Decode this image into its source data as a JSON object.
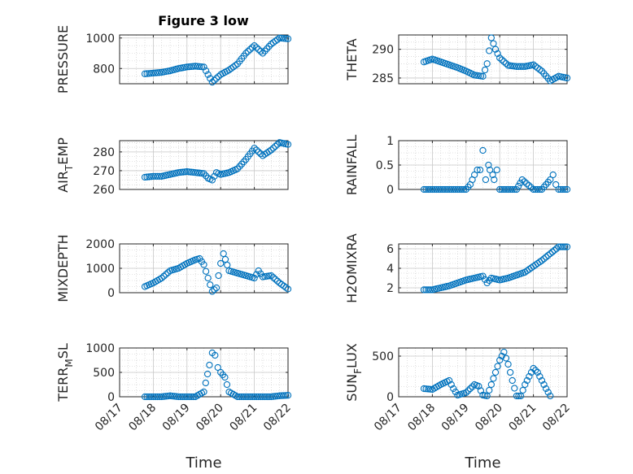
{
  "figure": {
    "title": "Figure 3 low"
  },
  "colors": {
    "marker": "#0072BD",
    "grid": "#c8c8c8",
    "axis": "#262626"
  },
  "chart_data": [
    {
      "type": "scatter",
      "title": "Figure 3 low",
      "xlabel": "",
      "ylabel": "PRESSURE",
      "ylim": [
        700,
        1020
      ],
      "yticks": [
        800,
        1000
      ],
      "xlim": [
        "08/17",
        "08/22"
      ],
      "grid": true,
      "series": [
        {
          "values": [
            [
              "08/17 18:00",
              765
            ],
            [
              "08/18 00:00",
              770
            ],
            [
              "08/18 06:00",
              775
            ],
            [
              "08/18 12:00",
              785
            ],
            [
              "08/18 18:00",
              800
            ],
            [
              "08/19 00:00",
              810
            ],
            [
              "08/19 06:00",
              815
            ],
            [
              "08/19 12:00",
              810
            ],
            [
              "08/19 15:00",
              760
            ],
            [
              "08/19 18:00",
              710
            ],
            [
              "08/20 00:00",
              760
            ],
            [
              "08/20 06:00",
              790
            ],
            [
              "08/20 12:00",
              830
            ],
            [
              "08/20 18:00",
              900
            ],
            [
              "08/21 00:00",
              950
            ],
            [
              "08/21 06:00",
              900
            ],
            [
              "08/21 12:00",
              960
            ],
            [
              "08/21 18:00",
              1000
            ],
            [
              "08/22 00:00",
              995
            ]
          ]
        }
      ]
    },
    {
      "type": "scatter",
      "xlabel": "",
      "ylabel": "THETA",
      "ylim": [
        284,
        292.5
      ],
      "yticks": [
        285,
        290
      ],
      "xlim": [
        "08/17",
        "08/22"
      ],
      "grid": true,
      "series": [
        {
          "values": [
            [
              "08/17 18:00",
              287.8
            ],
            [
              "08/18 00:00",
              288.3
            ],
            [
              "08/18 06:00",
              287.8
            ],
            [
              "08/18 12:00",
              287.3
            ],
            [
              "08/18 18:00",
              286.8
            ],
            [
              "08/19 00:00",
              286.2
            ],
            [
              "08/19 06:00",
              285.5
            ],
            [
              "08/19 12:00",
              285.3
            ],
            [
              "08/19 15:00",
              287.5
            ],
            [
              "08/19 18:00",
              292
            ],
            [
              "08/19 21:00",
              290
            ],
            [
              "08/20 00:00",
              288.5
            ],
            [
              "08/20 06:00",
              287.2
            ],
            [
              "08/20 12:00",
              287
            ],
            [
              "08/20 18:00",
              287
            ],
            [
              "08/21 00:00",
              287.3
            ],
            [
              "08/21 06:00",
              286.2
            ],
            [
              "08/21 12:00",
              284.5
            ],
            [
              "08/21 18:00",
              285.3
            ],
            [
              "08/22 00:00",
              285
            ]
          ]
        }
      ]
    },
    {
      "type": "scatter",
      "xlabel": "",
      "ylabel": "AIR_TEMP",
      "ylim": [
        260,
        286
      ],
      "yticks": [
        260,
        270,
        280
      ],
      "xlim": [
        "08/17",
        "08/22"
      ],
      "grid": true,
      "series": [
        {
          "values": [
            [
              "08/17 18:00",
              266.5
            ],
            [
              "08/18 00:00",
              267
            ],
            [
              "08/18 06:00",
              267
            ],
            [
              "08/18 12:00",
              268
            ],
            [
              "08/18 18:00",
              269
            ],
            [
              "08/19 00:00",
              269.5
            ],
            [
              "08/19 06:00",
              269
            ],
            [
              "08/19 12:00",
              268.5
            ],
            [
              "08/19 15:00",
              266
            ],
            [
              "08/19 18:00",
              265
            ],
            [
              "08/19 21:00",
              269
            ],
            [
              "08/20 00:00",
              268
            ],
            [
              "08/20 06:00",
              269
            ],
            [
              "08/20 12:00",
              271
            ],
            [
              "08/20 18:00",
              276
            ],
            [
              "08/21 00:00",
              282
            ],
            [
              "08/21 06:00",
              278
            ],
            [
              "08/21 12:00",
              281
            ],
            [
              "08/21 18:00",
              285
            ],
            [
              "08/22 00:00",
              284
            ]
          ]
        }
      ]
    },
    {
      "type": "scatter",
      "xlabel": "",
      "ylabel": "RAINFALL",
      "ylim": [
        0,
        1
      ],
      "yticks": [
        0,
        0.5,
        1
      ],
      "xlim": [
        "08/17",
        "08/22"
      ],
      "grid": true,
      "series": [
        {
          "values": [
            [
              "08/17 18:00",
              0
            ],
            [
              "08/18 00:00",
              0
            ],
            [
              "08/18 06:00",
              0
            ],
            [
              "08/18 12:00",
              0
            ],
            [
              "08/18 18:00",
              0
            ],
            [
              "08/19 00:00",
              0
            ],
            [
              "08/19 03:00",
              0.1
            ],
            [
              "08/19 06:00",
              0.3
            ],
            [
              "08/19 08:00",
              0.4
            ],
            [
              "08/19 10:00",
              0.4
            ],
            [
              "08/19 12:00",
              0.8
            ],
            [
              "08/19 14:00",
              0.2
            ],
            [
              "08/19 16:00",
              0.5
            ],
            [
              "08/19 17:00",
              0.4
            ],
            [
              "08/19 19:00",
              0.3
            ],
            [
              "08/19 20:00",
              0.2
            ],
            [
              "08/19 22:00",
              0.4
            ],
            [
              "08/20 00:00",
              0
            ],
            [
              "08/20 12:00",
              0
            ],
            [
              "08/20 16:00",
              0.2
            ],
            [
              "08/21 00:00",
              0
            ],
            [
              "08/21 06:00",
              0
            ],
            [
              "08/21 12:00",
              0.2
            ],
            [
              "08/21 14:00",
              0.3
            ],
            [
              "08/21 16:00",
              0.1
            ],
            [
              "08/21 18:00",
              0
            ],
            [
              "08/22 00:00",
              0
            ]
          ]
        }
      ]
    },
    {
      "type": "scatter",
      "xlabel": "",
      "ylabel": "MIXDEPTH",
      "ylim": [
        0,
        2000
      ],
      "yticks": [
        0,
        1000,
        2000
      ],
      "xlim": [
        "08/17",
        "08/22"
      ],
      "grid": true,
      "series": [
        {
          "values": [
            [
              "08/17 18:00",
              250
            ],
            [
              "08/18 00:00",
              400
            ],
            [
              "08/18 06:00",
              600
            ],
            [
              "08/18 12:00",
              900
            ],
            [
              "08/18 18:00",
              1000
            ],
            [
              "08/19 00:00",
              1200
            ],
            [
              "08/19 06:00",
              1350
            ],
            [
              "08/19 09:00",
              1400
            ],
            [
              "08/19 12:00",
              1150
            ],
            [
              "08/19 15:00",
              600
            ],
            [
              "08/19 18:00",
              50
            ],
            [
              "08/19 21:00",
              200
            ],
            [
              "08/20 00:00",
              1200
            ],
            [
              "08/20 02:00",
              1600
            ],
            [
              "08/20 06:00",
              900
            ],
            [
              "08/20 12:00",
              800
            ],
            [
              "08/20 18:00",
              700
            ],
            [
              "08/21 00:00",
              600
            ],
            [
              "08/21 03:00",
              900
            ],
            [
              "08/21 06:00",
              650
            ],
            [
              "08/21 12:00",
              700
            ],
            [
              "08/21 18:00",
              400
            ],
            [
              "08/22 00:00",
              150
            ]
          ]
        }
      ]
    },
    {
      "type": "scatter",
      "xlabel": "",
      "ylabel": "H2OMIXRA",
      "ylim": [
        1.5,
        6.5
      ],
      "yticks": [
        2,
        4,
        6
      ],
      "xlim": [
        "08/17",
        "08/22"
      ],
      "grid": true,
      "series": [
        {
          "values": [
            [
              "08/17 18:00",
              1.8
            ],
            [
              "08/18 00:00",
              1.8
            ],
            [
              "08/18 06:00",
              2
            ],
            [
              "08/18 12:00",
              2.2
            ],
            [
              "08/18 18:00",
              2.5
            ],
            [
              "08/19 00:00",
              2.8
            ],
            [
              "08/19 06:00",
              3
            ],
            [
              "08/19 12:00",
              3.2
            ],
            [
              "08/19 15:00",
              2.5
            ],
            [
              "08/19 18:00",
              3
            ],
            [
              "08/20 00:00",
              2.8
            ],
            [
              "08/20 06:00",
              3
            ],
            [
              "08/20 12:00",
              3.3
            ],
            [
              "08/20 18:00",
              3.6
            ],
            [
              "08/21 00:00",
              4.2
            ],
            [
              "08/21 06:00",
              4.8
            ],
            [
              "08/21 12:00",
              5.5
            ],
            [
              "08/21 18:00",
              6.2
            ],
            [
              "08/22 00:00",
              6.2
            ]
          ]
        }
      ]
    },
    {
      "type": "scatter",
      "xlabel": "Time",
      "ylabel": "TERR_MSL",
      "ylim": [
        0,
        1000
      ],
      "yticks": [
        0,
        500,
        1000
      ],
      "xlim": [
        "08/17",
        "08/22"
      ],
      "grid": true,
      "xticklabels": [
        "08/17",
        "08/18",
        "08/19",
        "08/20",
        "08/21",
        "08/22"
      ],
      "series": [
        {
          "values": [
            [
              "08/17 18:00",
              0
            ],
            [
              "08/18 00:00",
              0
            ],
            [
              "08/18 06:00",
              0
            ],
            [
              "08/18 12:00",
              20
            ],
            [
              "08/18 18:00",
              0
            ],
            [
              "08/19 00:00",
              0
            ],
            [
              "08/19 06:00",
              0
            ],
            [
              "08/19 12:00",
              100
            ],
            [
              "08/19 16:00",
              650
            ],
            [
              "08/19 18:00",
              900
            ],
            [
              "08/19 20:00",
              850
            ],
            [
              "08/19 22:00",
              600
            ],
            [
              "08/20 00:00",
              500
            ],
            [
              "08/20 03:00",
              400
            ],
            [
              "08/20 06:00",
              100
            ],
            [
              "08/20 12:00",
              0
            ],
            [
              "08/20 18:00",
              0
            ],
            [
              "08/21 00:00",
              0
            ],
            [
              "08/21 06:00",
              0
            ],
            [
              "08/21 12:00",
              0
            ],
            [
              "08/21 18:00",
              20
            ],
            [
              "08/22 00:00",
              30
            ]
          ]
        }
      ]
    },
    {
      "type": "scatter",
      "xlabel": "Time",
      "ylabel": "SUN_FLUX",
      "ylim": [
        0,
        600
      ],
      "yticks": [
        0,
        500
      ],
      "xlim": [
        "08/17",
        "08/22"
      ],
      "grid": true,
      "xticklabels": [
        "08/17",
        "08/18",
        "08/19",
        "08/20",
        "08/21",
        "08/22"
      ],
      "series": [
        {
          "values": [
            [
              "08/17 18:00",
              100
            ],
            [
              "08/18 00:00",
              90
            ],
            [
              "08/18 06:00",
              150
            ],
            [
              "08/18 12:00",
              200
            ],
            [
              "08/18 15:00",
              100
            ],
            [
              "08/18 18:00",
              20
            ],
            [
              "08/19 00:00",
              50
            ],
            [
              "08/19 06:00",
              150
            ],
            [
              "08/19 09:00",
              130
            ],
            [
              "08/19 12:00",
              20
            ],
            [
              "08/19 15:00",
              10
            ],
            [
              "08/19 18:00",
              150
            ],
            [
              "08/20 00:00",
              450
            ],
            [
              "08/20 03:00",
              550
            ],
            [
              "08/20 06:00",
              400
            ],
            [
              "08/20 09:00",
              200
            ],
            [
              "08/20 12:00",
              10
            ],
            [
              "08/20 15:00",
              10
            ],
            [
              "08/20 18:00",
              150
            ],
            [
              "08/21 00:00",
              350
            ],
            [
              "08/21 03:00",
              300
            ],
            [
              "08/21 06:00",
              200
            ],
            [
              "08/21 09:00",
              100
            ],
            [
              "08/21 12:00",
              10
            ]
          ]
        }
      ]
    }
  ]
}
